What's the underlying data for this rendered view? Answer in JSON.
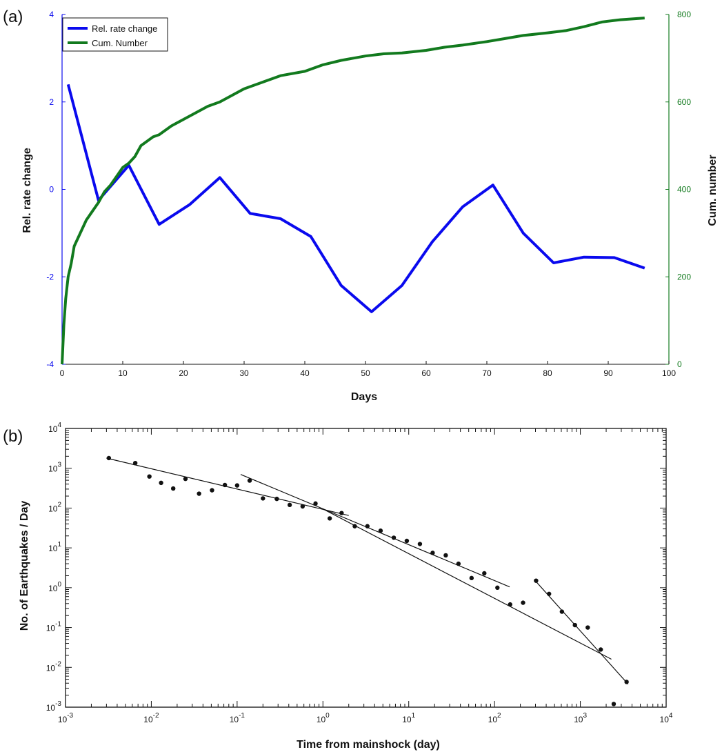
{
  "colors": {
    "blue": "#0a0aee",
    "green": "#127a1e",
    "black": "#111111"
  },
  "chart_data": [
    {
      "panel_label": "(a)",
      "type": "line",
      "xlabel": "Days",
      "ylabel_left": "Rel. rate change",
      "ylabel_right": "Cum. number",
      "xlim": [
        0,
        100
      ],
      "ylim_left": [
        -4,
        4
      ],
      "ylim_right": [
        0,
        800
      ],
      "x_ticks": [
        "0",
        "10",
        "20",
        "30",
        "40",
        "50",
        "60",
        "70",
        "80",
        "90",
        "100"
      ],
      "y_left_ticks": [
        "-4",
        "-2",
        "0",
        "2",
        "4"
      ],
      "y_right_ticks": [
        "0",
        "200",
        "400",
        "600",
        "800"
      ],
      "legend": {
        "placement": "top-left",
        "entries": [
          "Rel. rate change",
          "Cum. Number"
        ]
      },
      "series": [
        {
          "name": "Rel. rate change",
          "axis": "left",
          "color": "#0a0aee",
          "x": [
            1,
            6,
            11,
            16,
            21,
            26,
            31,
            36,
            41,
            46,
            51,
            56,
            61,
            66,
            71,
            76,
            81,
            86,
            91,
            96
          ],
          "y": [
            2.4,
            -0.25,
            0.55,
            -0.8,
            -0.35,
            0.27,
            -0.55,
            -0.67,
            -1.08,
            -2.2,
            -2.8,
            -2.2,
            -1.2,
            -0.4,
            0.1,
            -1.0,
            -1.68,
            -1.55,
            -1.56,
            -1.8
          ]
        },
        {
          "name": "Cum. Number",
          "axis": "right",
          "color": "#127a1e",
          "x": [
            0,
            0.3,
            0.6,
            1,
            1.5,
            2,
            3,
            4,
            5,
            6,
            7,
            8,
            9,
            10,
            11,
            12,
            13,
            14,
            15,
            16,
            18,
            20,
            22,
            24,
            26,
            28,
            30,
            33,
            36,
            40,
            43,
            46,
            50,
            53,
            56,
            60,
            63,
            66,
            70,
            73,
            76,
            80,
            83,
            86,
            89,
            92,
            96
          ],
          "y": [
            0,
            90,
            150,
            200,
            230,
            270,
            300,
            330,
            350,
            370,
            395,
            410,
            430,
            450,
            460,
            475,
            500,
            510,
            520,
            525,
            545,
            560,
            575,
            590,
            600,
            615,
            630,
            645,
            660,
            670,
            685,
            695,
            705,
            710,
            712,
            718,
            725,
            730,
            738,
            745,
            752,
            758,
            763,
            772,
            783,
            788,
            792
          ]
        }
      ]
    },
    {
      "panel_label": "(b)",
      "type": "scatter",
      "xlabel": "Time from mainshock (day)",
      "ylabel": "No. of Earthquakes / Day",
      "x_scale": "log",
      "y_scale": "log",
      "xlim": [
        0.001,
        10000
      ],
      "ylim": [
        0.001,
        10000
      ],
      "x_ticks": [
        {
          "base": "10",
          "exp": "-3"
        },
        {
          "base": "10",
          "exp": "-2"
        },
        {
          "base": "10",
          "exp": "-1"
        },
        {
          "base": "10",
          "exp": "0"
        },
        {
          "base": "10",
          "exp": "1"
        },
        {
          "base": "10",
          "exp": "2"
        },
        {
          "base": "10",
          "exp": "3"
        },
        {
          "base": "10",
          "exp": "4"
        }
      ],
      "y_ticks": [
        {
          "base": "10",
          "exp": "-3"
        },
        {
          "base": "10",
          "exp": "-2"
        },
        {
          "base": "10",
          "exp": "-1"
        },
        {
          "base": "10",
          "exp": "0"
        },
        {
          "base": "10",
          "exp": "1"
        },
        {
          "base": "10",
          "exp": "2"
        },
        {
          "base": "10",
          "exp": "3"
        },
        {
          "base": "10",
          "exp": "4"
        }
      ],
      "points": {
        "x": [
          0.0032,
          0.0065,
          0.0095,
          0.013,
          0.018,
          0.025,
          0.036,
          0.051,
          0.072,
          0.1,
          0.14,
          0.2,
          0.29,
          0.41,
          0.58,
          0.82,
          1.2,
          1.65,
          2.35,
          3.3,
          4.7,
          6.7,
          9.5,
          13.5,
          19,
          27,
          38,
          54,
          76,
          108,
          152,
          215,
          305,
          432,
          610,
          865,
          1220,
          1730,
          2450,
          3460
        ],
        "y": [
          1800,
          1350,
          620,
          430,
          310,
          540,
          230,
          280,
          380,
          370,
          490,
          175,
          170,
          120,
          110,
          130,
          55,
          75,
          35,
          35,
          27,
          18,
          15,
          12.5,
          7.5,
          6.5,
          4,
          1.75,
          2.3,
          1.0,
          0.38,
          0.42,
          1.5,
          0.7,
          0.25,
          0.115,
          0.1,
          0.028,
          0.0012,
          0.0043
        ]
      },
      "fit_lines": [
        {
          "x": [
            0.003,
            2.0
          ],
          "y": [
            1800,
            65
          ]
        },
        {
          "x": [
            0.11,
            150
          ],
          "y": [
            700,
            1.05
          ]
        },
        {
          "x": [
            1.0,
            2300
          ],
          "y": [
            95,
            0.016
          ]
        },
        {
          "x": [
            290,
            3600
          ],
          "y": [
            1.6,
            0.0038
          ]
        }
      ]
    }
  ]
}
